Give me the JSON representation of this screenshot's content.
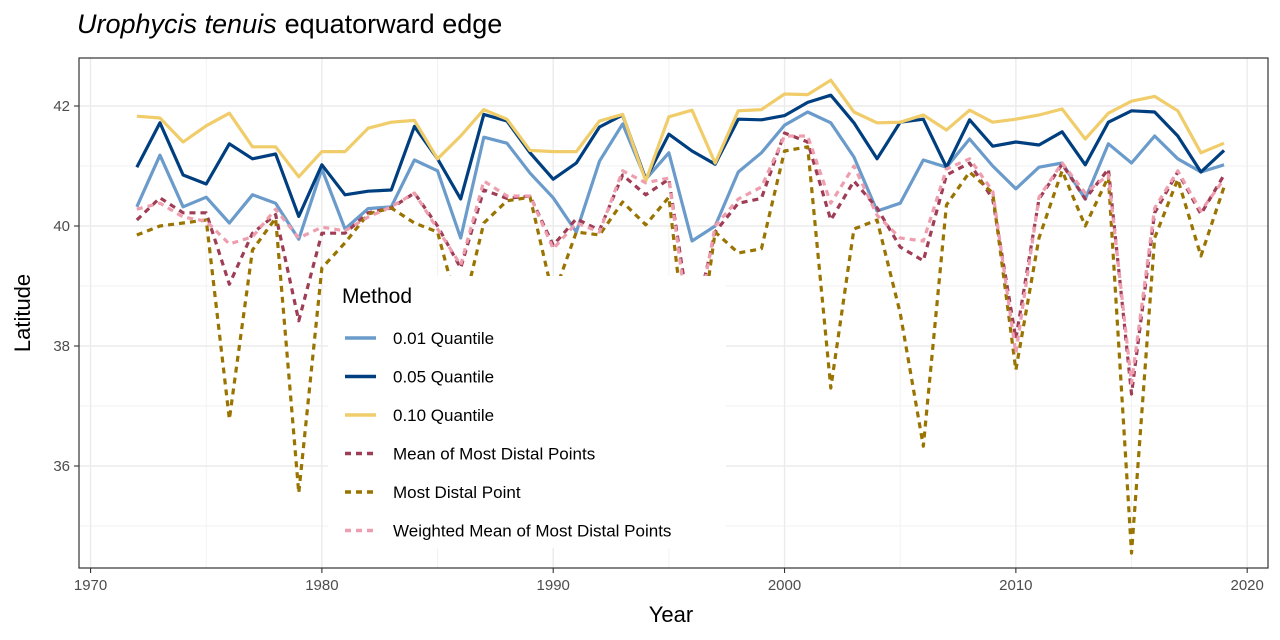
{
  "chart_data": {
    "type": "line",
    "title_italic": "Urophycis tenuis",
    "title_rest": "equatorward edge",
    "xlabel": "Year",
    "ylabel": "Latitude",
    "xlim": [
      1969.5,
      2020.9
    ],
    "ylim": [
      34.3,
      42.8
    ],
    "x_ticks": [
      1970,
      1980,
      1990,
      2000,
      2010,
      2020
    ],
    "y_ticks": [
      36,
      38,
      40,
      42
    ],
    "grid": true,
    "legend_title": "Method",
    "legend_position": "inside-left",
    "x": [
      1972,
      1973,
      1974,
      1975,
      1976,
      1977,
      1978,
      1979,
      1980,
      1981,
      1982,
      1983,
      1984,
      1985,
      1986,
      1987,
      1988,
      1989,
      1990,
      1991,
      1992,
      1993,
      1994,
      1995,
      1996,
      1997,
      1998,
      1999,
      2000,
      2001,
      2002,
      2003,
      2004,
      2005,
      2006,
      2007,
      2008,
      2009,
      2010,
      2011,
      2012,
      2013,
      2014,
      2015,
      2016,
      2017,
      2018,
      2019
    ],
    "series": [
      {
        "name": "0.01 Quantile",
        "color": "#6a9bcb",
        "dash": "solid",
        "values": [
          40.32,
          41.18,
          40.32,
          40.48,
          40.05,
          40.52,
          40.38,
          39.78,
          40.95,
          39.95,
          40.29,
          40.32,
          41.1,
          40.92,
          39.8,
          41.48,
          41.38,
          40.88,
          40.47,
          39.9,
          41.08,
          41.7,
          40.78,
          41.22,
          39.75,
          40.0,
          40.9,
          41.22,
          41.68,
          41.9,
          41.72,
          41.15,
          40.25,
          40.38,
          41.1,
          40.98,
          41.45,
          41.0,
          40.62,
          40.98,
          41.05,
          40.45,
          41.37,
          41.05,
          41.5,
          41.12,
          40.9,
          41.02
        ]
      },
      {
        "name": "0.05 Quantile",
        "color": "#003f7f",
        "dash": "solid",
        "values": [
          40.98,
          41.72,
          40.85,
          40.7,
          41.37,
          41.12,
          41.2,
          40.16,
          41.02,
          40.52,
          40.58,
          40.6,
          41.66,
          41.12,
          40.45,
          41.86,
          41.75,
          41.22,
          40.78,
          41.05,
          41.65,
          41.85,
          40.78,
          41.53,
          41.25,
          41.03,
          41.78,
          41.77,
          41.84,
          42.06,
          42.18,
          41.72,
          41.12,
          41.73,
          41.78,
          40.98,
          41.77,
          41.33,
          41.4,
          41.35,
          41.57,
          41.02,
          41.73,
          41.92,
          41.9,
          41.5,
          40.9,
          41.26
        ]
      },
      {
        "name": "0.10 Quantile",
        "color": "#f0cd6a",
        "dash": "solid",
        "values": [
          41.83,
          41.8,
          41.4,
          41.67,
          41.88,
          41.32,
          41.32,
          40.82,
          41.24,
          41.24,
          41.63,
          41.73,
          41.76,
          41.12,
          41.5,
          41.94,
          41.78,
          41.26,
          41.24,
          41.24,
          41.75,
          41.86,
          40.75,
          41.82,
          41.93,
          41.05,
          41.92,
          41.94,
          42.2,
          42.19,
          42.43,
          41.9,
          41.72,
          41.73,
          41.85,
          41.6,
          41.93,
          41.73,
          41.78,
          41.85,
          41.95,
          41.45,
          41.88,
          42.08,
          42.16,
          41.92,
          41.22,
          41.38
        ]
      },
      {
        "name": "Mean of Most Distal Points",
        "color": "#9e3d55",
        "dash": "dashed",
        "values": [
          40.1,
          40.47,
          40.22,
          40.22,
          39.03,
          39.88,
          40.19,
          38.42,
          39.88,
          39.88,
          40.22,
          40.3,
          40.55,
          40.0,
          39.3,
          40.6,
          40.46,
          40.5,
          39.68,
          40.12,
          39.93,
          40.85,
          40.52,
          40.78,
          38.22,
          39.9,
          40.38,
          40.46,
          41.55,
          41.4,
          40.1,
          40.75,
          40.3,
          39.65,
          39.42,
          40.85,
          41.05,
          40.45,
          38.12,
          40.45,
          41.03,
          40.45,
          40.95,
          37.2,
          40.22,
          40.9,
          40.2,
          40.85
        ]
      },
      {
        "name": "Most Distal Point",
        "color": "#9a7400",
        "dash": "dashed",
        "values": [
          39.85,
          40.0,
          40.05,
          40.1,
          36.78,
          39.6,
          40.13,
          35.55,
          39.3,
          39.72,
          40.2,
          40.3,
          40.05,
          39.9,
          38.45,
          40.05,
          40.42,
          40.48,
          38.82,
          39.9,
          39.85,
          40.4,
          40.02,
          40.48,
          37.15,
          39.9,
          39.55,
          39.62,
          41.25,
          41.32,
          37.3,
          39.95,
          40.1,
          38.55,
          36.33,
          40.35,
          40.9,
          40.55,
          37.6,
          39.8,
          40.92,
          40.0,
          40.82,
          34.55,
          39.8,
          40.78,
          39.5,
          40.65
        ]
      },
      {
        "name": "Weighted Mean of Most Distal Points",
        "color": "#ee9faf",
        "dash": "dashed",
        "values": [
          40.28,
          40.38,
          40.15,
          40.08,
          39.7,
          39.82,
          40.28,
          39.8,
          39.98,
          39.92,
          40.15,
          40.32,
          40.55,
          39.95,
          39.35,
          40.75,
          40.5,
          40.5,
          39.62,
          40.05,
          39.9,
          40.92,
          40.72,
          40.8,
          37.92,
          40.0,
          40.45,
          40.65,
          41.5,
          41.5,
          40.38,
          41.0,
          40.18,
          39.8,
          39.75,
          40.95,
          41.12,
          40.58,
          37.88,
          40.48,
          41.05,
          40.55,
          40.85,
          37.38,
          40.3,
          40.92,
          40.25,
          40.78
        ]
      }
    ]
  }
}
